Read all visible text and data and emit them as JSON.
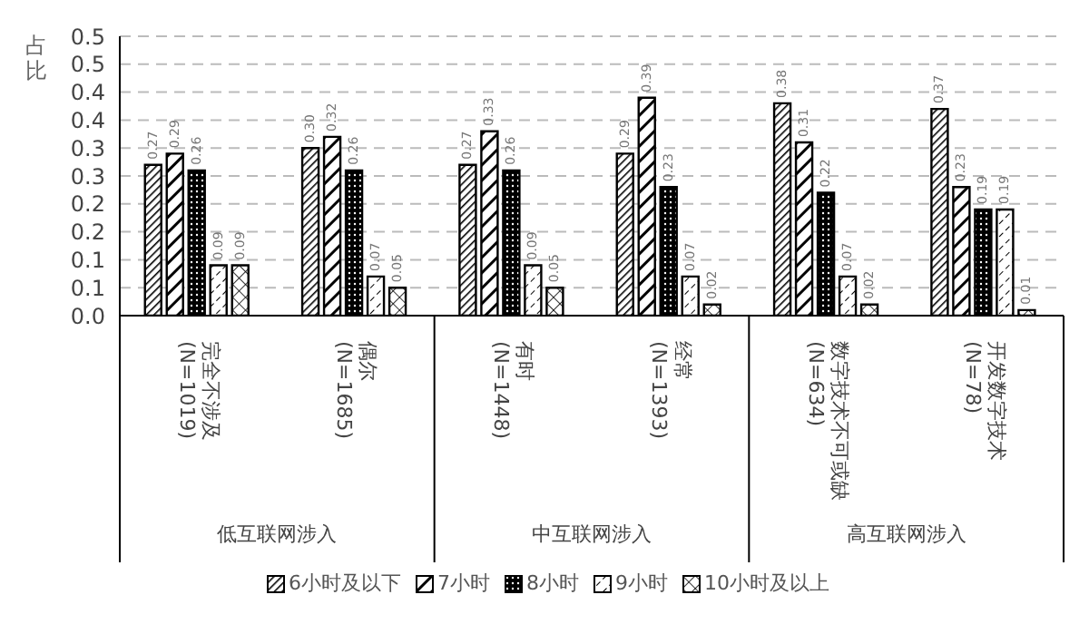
{
  "chart_data": {
    "type": "bar",
    "ylabel": "占比",
    "categories": [
      "完全不涉及\n(N=1019)",
      "偶尔\n(N=1685)",
      "有时\n(N=1448)",
      "经常\n(N=1393)",
      "数字技术不可或缺\n(N=634)",
      "开发数字技术\n(N=78)"
    ],
    "annotations": [
      "低互联网涉入",
      "中互联网涉入",
      "高互联网涉入"
    ],
    "series": [
      {
        "name": "6小时及以下",
        "color": "#000000",
        "values": [
          0.27,
          0.3,
          0.27,
          0.29,
          0.38,
          0.37
        ],
        "value_labels": [
          "0.27",
          "0.30",
          "0.27",
          "0.29",
          "0.38",
          "0.37"
        ]
      },
      {
        "name": "7小时",
        "color": "#000000",
        "values": [
          0.29,
          0.32,
          0.33,
          0.39,
          0.31,
          0.23
        ],
        "value_labels": [
          "0.29",
          "0.32",
          "0.33",
          "0.39",
          "0.31",
          "0.23"
        ]
      },
      {
        "name": "8小时",
        "color": "#000000",
        "values": [
          0.26,
          0.26,
          0.26,
          0.23,
          0.22,
          0.19
        ],
        "value_labels": [
          "0.26",
          "0.26",
          "0.26",
          "0.23",
          "0.22",
          "0.19"
        ]
      },
      {
        "name": "9小时",
        "color": "#000000",
        "values": [
          0.09,
          0.07,
          0.09,
          0.07,
          0.07,
          0.19
        ],
        "value_labels": [
          "0.09",
          "0.07",
          "0.09",
          "0.07",
          "0.07",
          "0.19"
        ]
      },
      {
        "name": "10小时及以上",
        "color": "#000000",
        "values": [
          0.09,
          0.05,
          0.05,
          0.02,
          0.02,
          0.01
        ],
        "value_labels": [
          "0.09",
          "0.05",
          "0.05",
          "0.02",
          "0.02",
          "0.01"
        ]
      }
    ],
    "ylim": [
      0,
      0.5
    ],
    "yticks": [
      {
        "value": 0,
        "label": "0.0"
      },
      {
        "value": 0.05,
        "label": "0.1"
      },
      {
        "value": 0.1,
        "label": "0.1"
      },
      {
        "value": 0.15,
        "label": "0.2"
      },
      {
        "value": 0.2,
        "label": "0.2"
      },
      {
        "value": 0.25,
        "label": "0.3"
      },
      {
        "value": 0.3,
        "label": "0.3"
      },
      {
        "value": 0.35,
        "label": "0.4"
      },
      {
        "value": 0.4,
        "label": "0.4"
      },
      {
        "value": 0.45,
        "label": "0.5"
      },
      {
        "value": 0.5,
        "label": "0.5"
      }
    ],
    "grid": "y",
    "legend": "bottom"
  }
}
